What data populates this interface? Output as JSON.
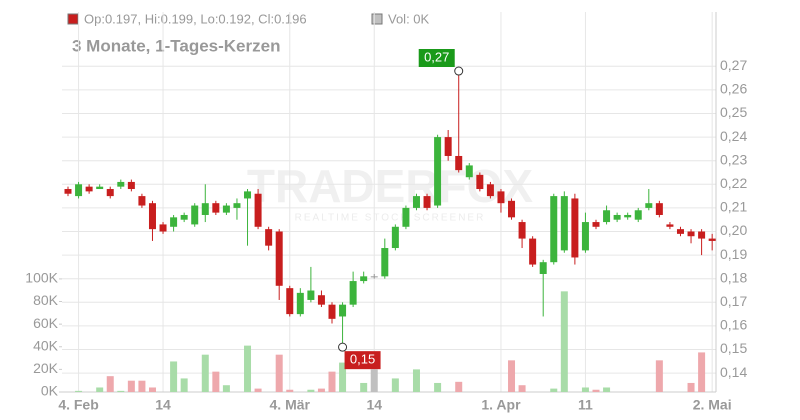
{
  "chart_data": {
    "type": "candlestick",
    "header_ohlc": "Op:0.197, Hi:0.199, Lo:0.192, Cl:0.196",
    "header_volume": "Vol: 0K",
    "subtitle": "3 Monate, 1-Tages-Kerzen",
    "watermark": "TRADERFOX",
    "watermark_sub": "REALTIME STOCK SCREENER",
    "high_label": "0,27",
    "low_label": "0,15",
    "categories": [
      null,
      "4. Feb",
      null,
      null,
      null,
      null,
      null,
      null,
      null,
      "14",
      null,
      null,
      null,
      null,
      null,
      null,
      null,
      null,
      null,
      null,
      null,
      "4. Mär",
      null,
      null,
      null,
      null,
      null,
      null,
      null,
      "14",
      null,
      null,
      null,
      null,
      null,
      null,
      null,
      null,
      null,
      null,
      null,
      "1. Apr",
      null,
      null,
      null,
      null,
      null,
      null,
      null,
      "11",
      null,
      null,
      null,
      null,
      null,
      null,
      null,
      null,
      null,
      null,
      null,
      "2. Mai"
    ],
    "open": [
      0.218,
      0.215,
      0.219,
      0.218,
      0.218,
      0.219,
      0.221,
      0.215,
      0.212,
      0.203,
      0.202,
      0.205,
      0.203,
      0.207,
      0.212,
      0.208,
      0.21,
      0.214,
      0.216,
      0.201,
      0.2,
      0.176,
      0.165,
      0.171,
      0.173,
      0.169,
      0.164,
      0.169,
      0.179,
      0.181,
      0.181,
      0.193,
      0.202,
      0.21,
      0.215,
      0.211,
      0.24,
      0.232,
      0.223,
      0.224,
      0.22,
      0.217,
      0.213,
      0.204,
      0.197,
      0.182,
      0.187,
      0.192,
      0.214,
      0.192,
      0.204,
      0.204,
      0.205,
      0.206,
      0.205,
      0.21,
      0.212,
      0.203,
      0.201,
      0.2,
      0.2,
      0.197
    ],
    "high": [
      0.219,
      0.221,
      0.22,
      0.22,
      0.219,
      0.222,
      0.222,
      0.216,
      0.213,
      0.204,
      0.207,
      0.208,
      0.212,
      0.22,
      0.213,
      0.212,
      0.214,
      0.218,
      0.218,
      0.202,
      0.201,
      0.177,
      0.176,
      0.185,
      0.175,
      0.17,
      0.17,
      0.183,
      0.183,
      0.182,
      0.197,
      0.203,
      0.211,
      0.216,
      0.216,
      0.241,
      0.243,
      0.268,
      0.229,
      0.225,
      0.221,
      0.218,
      0.214,
      0.205,
      0.198,
      0.188,
      0.216,
      0.217,
      0.216,
      0.208,
      0.205,
      0.211,
      0.208,
      0.208,
      0.21,
      0.218,
      0.213,
      0.204,
      0.202,
      0.201,
      0.201,
      0.199
    ],
    "low": [
      0.215,
      0.214,
      0.216,
      0.218,
      0.214,
      0.218,
      0.217,
      0.21,
      0.196,
      0.199,
      0.2,
      0.204,
      0.202,
      0.204,
      0.207,
      0.207,
      0.205,
      0.194,
      0.201,
      0.192,
      0.171,
      0.164,
      0.164,
      0.17,
      0.168,
      0.161,
      0.151,
      0.168,
      0.178,
      0.18,
      0.18,
      0.192,
      0.201,
      0.209,
      0.209,
      0.21,
      0.23,
      0.225,
      0.222,
      0.217,
      0.214,
      0.208,
      0.205,
      0.193,
      0.185,
      0.164,
      0.186,
      0.191,
      0.186,
      0.191,
      0.201,
      0.203,
      0.204,
      0.205,
      0.204,
      0.209,
      0.206,
      0.201,
      0.198,
      0.195,
      0.19,
      0.192
    ],
    "close": [
      0.216,
      0.22,
      0.217,
      0.219,
      0.215,
      0.221,
      0.218,
      0.211,
      0.201,
      0.2,
      0.206,
      0.207,
      0.211,
      0.212,
      0.208,
      0.211,
      0.212,
      0.217,
      0.202,
      0.194,
      0.177,
      0.165,
      0.174,
      0.175,
      0.169,
      0.163,
      0.169,
      0.179,
      0.181,
      0.181,
      0.193,
      0.202,
      0.21,
      0.215,
      0.21,
      0.24,
      0.232,
      0.226,
      0.228,
      0.218,
      0.215,
      0.212,
      0.206,
      0.197,
      0.186,
      0.187,
      0.215,
      0.215,
      0.189,
      0.204,
      0.202,
      0.209,
      0.207,
      0.207,
      0.209,
      0.212,
      0.207,
      0.202,
      0.199,
      0.198,
      0.197,
      0.196
    ],
    "volume": [
      0,
      1000,
      0,
      4000,
      14000,
      1000,
      10000,
      10000,
      4000,
      0,
      27000,
      12000,
      0,
      33000,
      18000,
      6000,
      0,
      41000,
      3000,
      0,
      33000,
      2000,
      0,
      2000,
      3000,
      18000,
      26000,
      0,
      8000,
      20000,
      0,
      12000,
      0,
      20000,
      0,
      8000,
      0,
      9000,
      0,
      0,
      0,
      0,
      28000,
      6000,
      0,
      0,
      3000,
      89000,
      0,
      4000,
      2000,
      4000,
      0,
      0,
      0,
      0,
      28000,
      0,
      0,
      8000,
      35000,
      0
    ],
    "up_color": "#3cb43c",
    "down_color": "#c81e1e",
    "flat_color": "#999999",
    "volume_up_color": "#a8dca8",
    "volume_down_color": "#eea8ac",
    "volume_flat_color": "#c0c0c0",
    "ylim": [
      0.132,
      0.293
    ],
    "yticks": [
      {
        "value": 0.14,
        "label": "0,14"
      },
      {
        "value": 0.15,
        "label": "0,15"
      },
      {
        "value": 0.16,
        "label": "0,16"
      },
      {
        "value": 0.17,
        "label": "0,17"
      },
      {
        "value": 0.18,
        "label": "0,18"
      },
      {
        "value": 0.19,
        "label": "0,19"
      },
      {
        "value": 0.2,
        "label": "0,20"
      },
      {
        "value": 0.21,
        "label": "0,21"
      },
      {
        "value": 0.22,
        "label": "0,22"
      },
      {
        "value": 0.23,
        "label": "0,23"
      },
      {
        "value": 0.24,
        "label": "0,24"
      },
      {
        "value": 0.25,
        "label": "0,25"
      },
      {
        "value": 0.26,
        "label": "0,26"
      },
      {
        "value": 0.27,
        "label": "0,27"
      }
    ],
    "y2lim": [
      0,
      336000
    ],
    "y2ticks": [
      {
        "value": 0,
        "label": "0K"
      },
      {
        "value": 20000,
        "label": "20K"
      },
      {
        "value": 40000,
        "label": "40K"
      },
      {
        "value": 60000,
        "label": "60K"
      },
      {
        "value": 80000,
        "label": "80K"
      },
      {
        "value": 100000,
        "label": "100K"
      }
    ],
    "grid": true
  }
}
